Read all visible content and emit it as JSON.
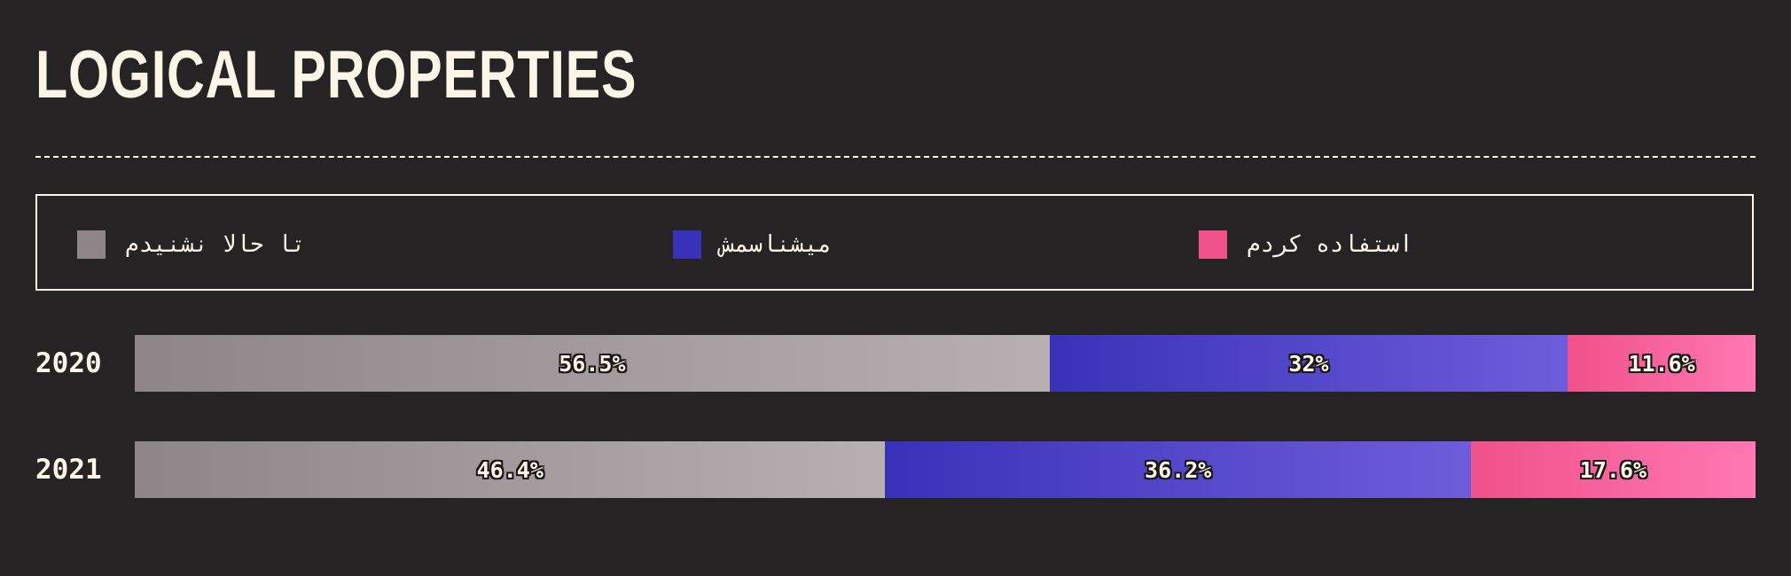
{
  "title": "LOGICAL PROPERTIES",
  "legend": [
    {
      "label": "تا حالا نشنیدم",
      "color": "#8e8589"
    },
    {
      "label": "میشناسمش",
      "color": "#3832b8"
    },
    {
      "label": "استفاده کردم",
      "color": "#ef5189"
    }
  ],
  "chart_data": {
    "type": "bar",
    "orientation": "horizontal",
    "stacked": true,
    "title": "LOGICAL PROPERTIES",
    "categories": [
      "2020",
      "2021"
    ],
    "series": [
      {
        "name": "تا حالا نشنیدم",
        "values": [
          56.5,
          46.4
        ],
        "labels": [
          "56.5%",
          "46.4%"
        ],
        "color_start": "#8e8589",
        "color_end": "#b8afb2"
      },
      {
        "name": "میشناسمش",
        "values": [
          32,
          36.2
        ],
        "labels": [
          "32%",
          "36.2%"
        ],
        "color_start": "#3832b8",
        "color_end": "#6f5cdb"
      },
      {
        "name": "استفاده کردم",
        "values": [
          11.6,
          17.6
        ],
        "labels": [
          "11.6%",
          "17.6%"
        ],
        "color_start": "#ef5189",
        "color_end": "#ff78b2"
      }
    ],
    "xlim": [
      0,
      100
    ]
  }
}
